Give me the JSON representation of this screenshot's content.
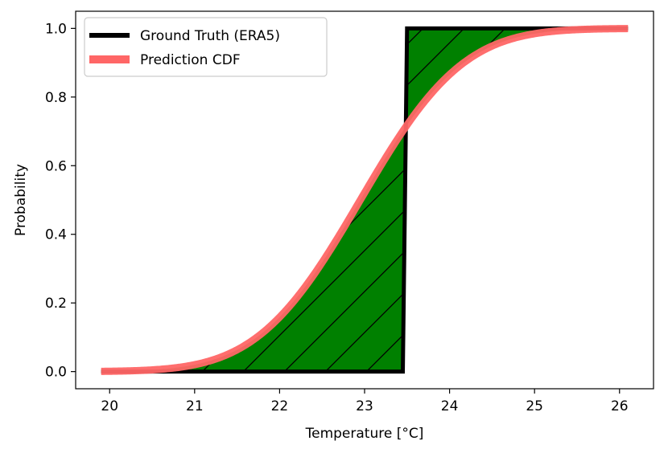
{
  "chart_data": {
    "type": "line",
    "xlabel": "Temperature [°C]",
    "ylabel": "Probability",
    "xlim": [
      19.6,
      26.4
    ],
    "ylim": [
      -0.05,
      1.05
    ],
    "xticks": [
      20,
      21,
      22,
      23,
      24,
      25,
      26
    ],
    "yticks": [
      0.0,
      0.2,
      0.4,
      0.6,
      0.8,
      1.0
    ],
    "xtick_labels": [
      "20",
      "21",
      "22",
      "23",
      "24",
      "25",
      "26"
    ],
    "ytick_labels": [
      "0.0",
      "0.2",
      "0.4",
      "0.6",
      "0.8",
      "1.0"
    ],
    "grid": false,
    "legend_position": "top-left",
    "series": [
      {
        "name": "Ground Truth (ERA5)",
        "kind": "step",
        "color": "#000000",
        "x": [
          19.9,
          23.45,
          23.5,
          26.1
        ],
        "y": [
          0.0,
          0.0,
          1.0,
          1.0
        ]
      },
      {
        "name": "Prediction CDF",
        "kind": "normal-cdf",
        "color": "#ff6666",
        "mean": 22.95,
        "std": 0.95,
        "x_range": [
          19.9,
          26.1
        ]
      }
    ],
    "shaded_area": {
      "description": "area between curves",
      "fill_color": "#008000",
      "hatch_color": "#000000"
    }
  }
}
